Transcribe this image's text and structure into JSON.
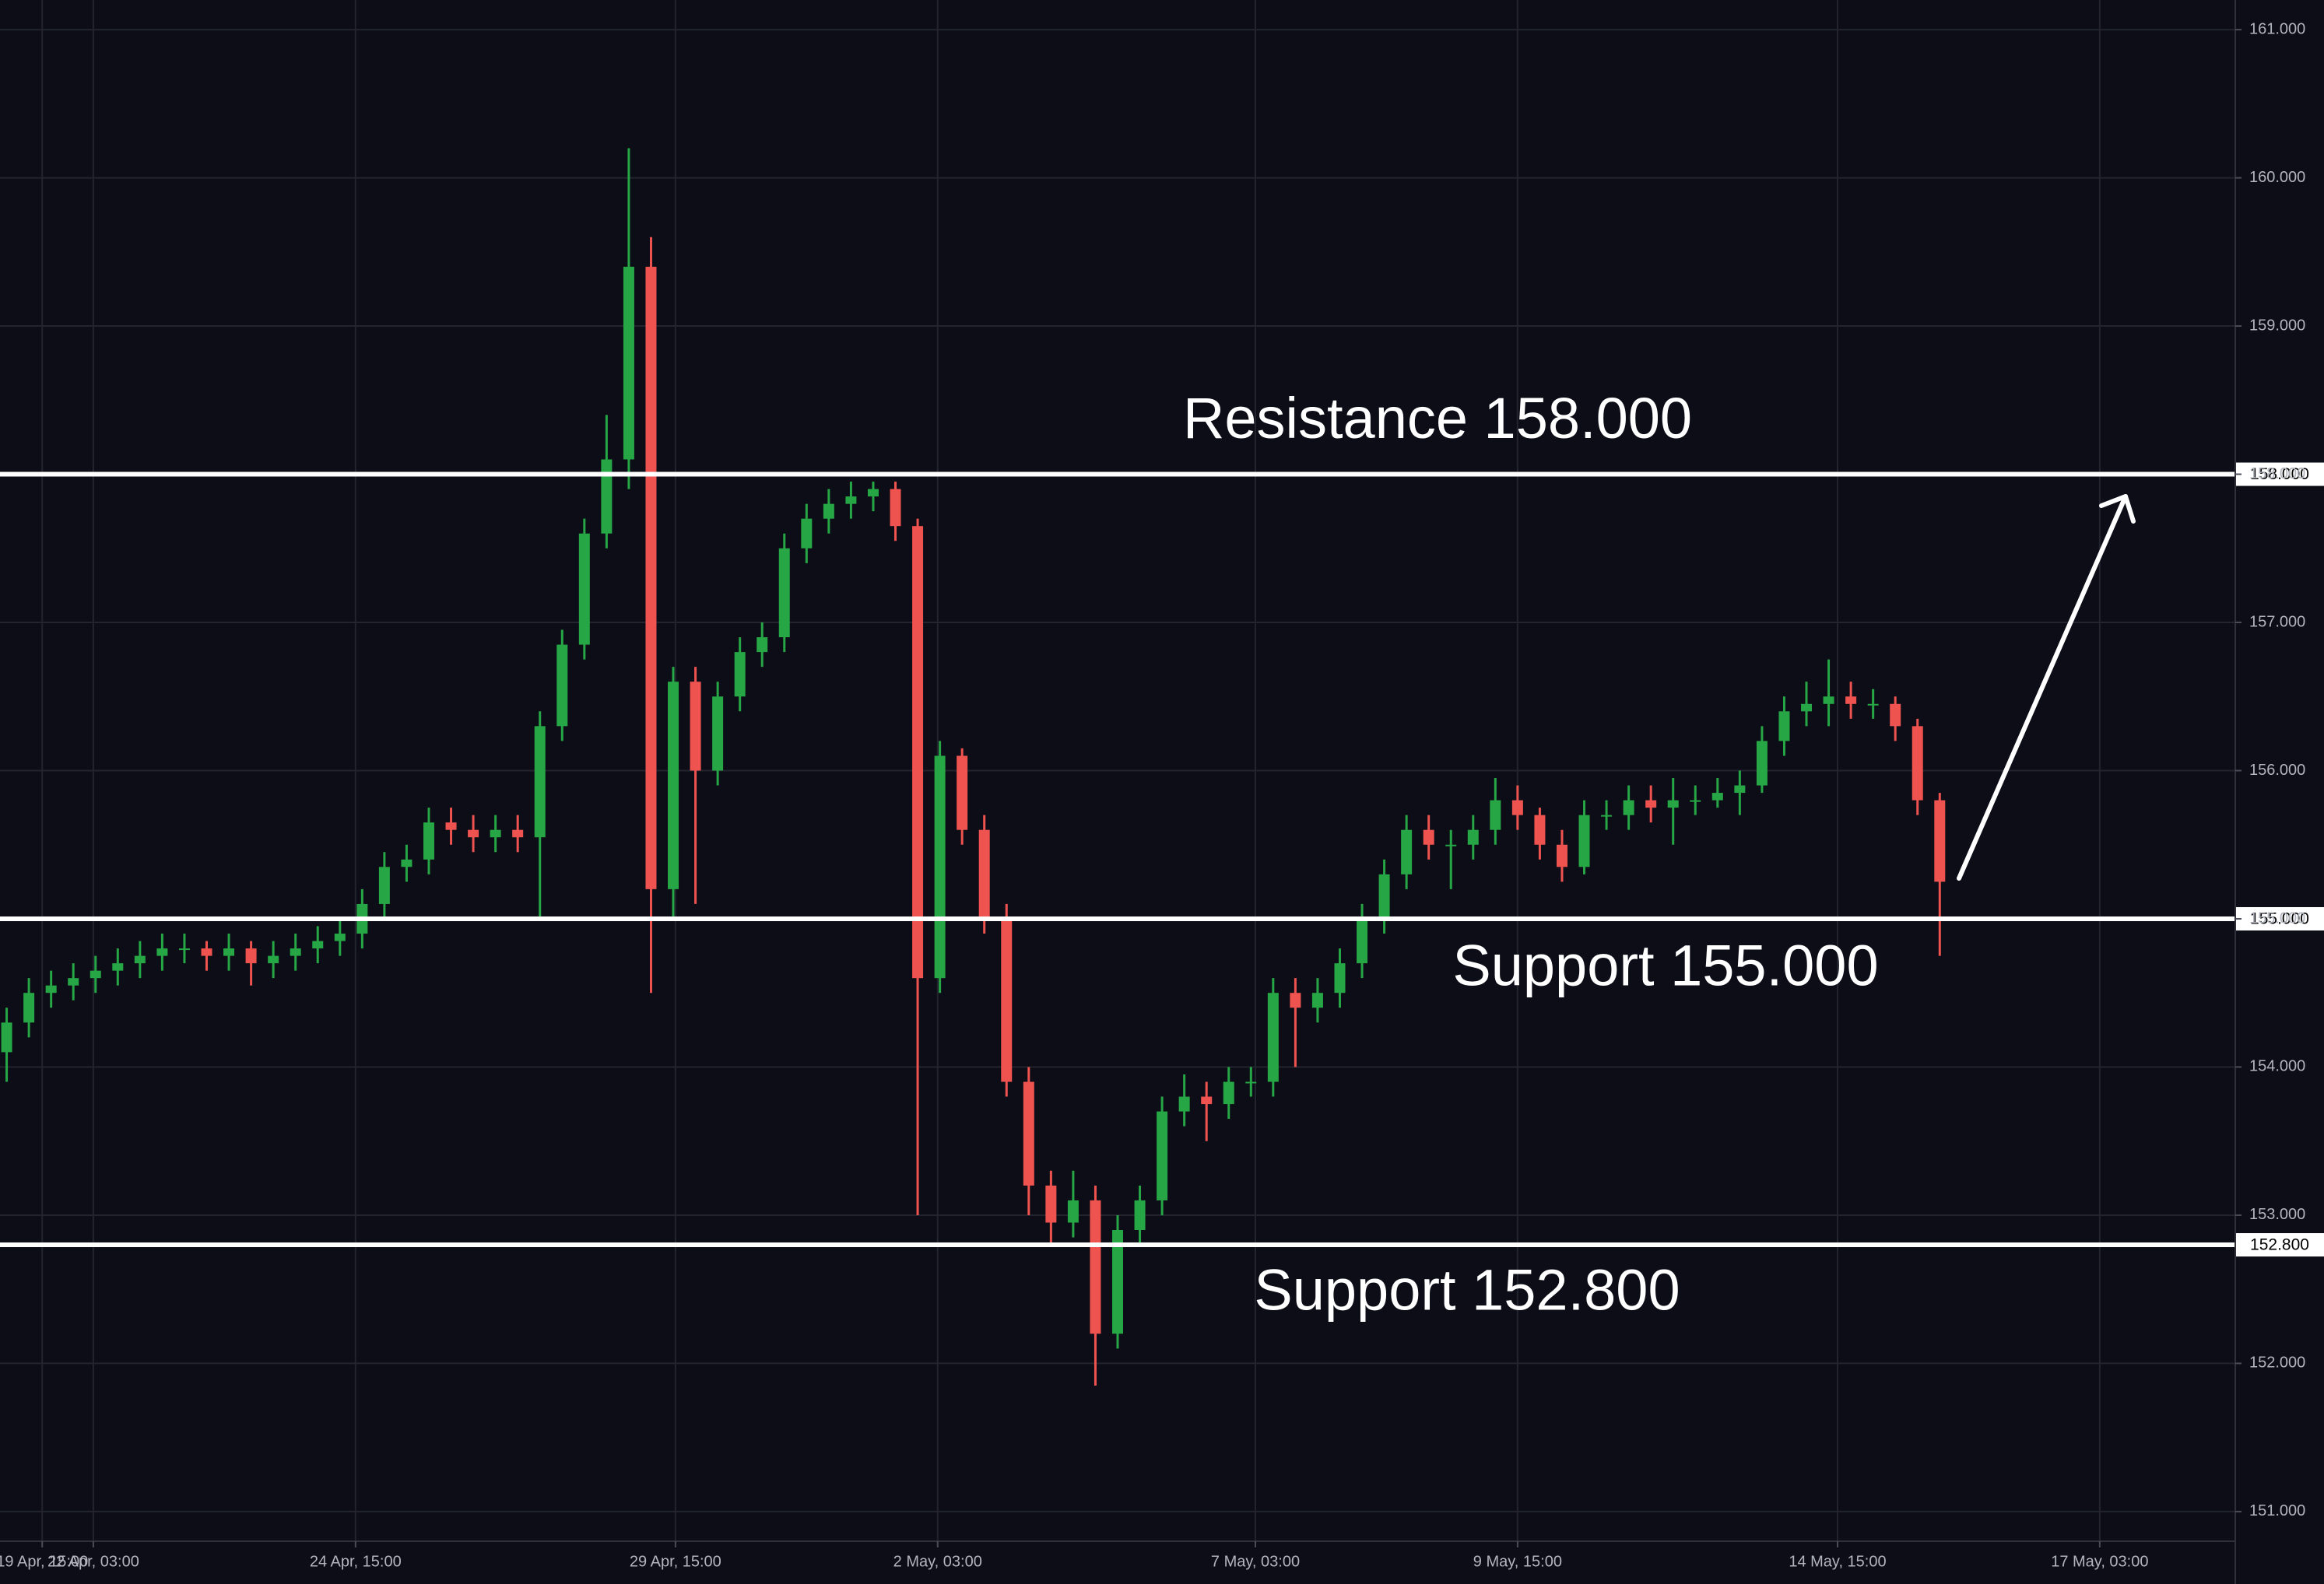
{
  "chart_data": {
    "type": "candlestick",
    "x": [
      0,
      1,
      2,
      3,
      4,
      5,
      6,
      7,
      8,
      9,
      10,
      11,
      12,
      13,
      14,
      15,
      16,
      17,
      18,
      19,
      20,
      21,
      22,
      23,
      24,
      25,
      26,
      27,
      28,
      29,
      30,
      31,
      32,
      33,
      34,
      35,
      36,
      37,
      38,
      39,
      40,
      41,
      42,
      43,
      44,
      45,
      46,
      47,
      48,
      49,
      50,
      51,
      52,
      53,
      54,
      55,
      56,
      57,
      58,
      59,
      60,
      61,
      62,
      63,
      64,
      65,
      66,
      67,
      68,
      69,
      70,
      71,
      72,
      73,
      74,
      75,
      76,
      77,
      78,
      79,
      80,
      81,
      82,
      83,
      84,
      85,
      86,
      87
    ],
    "open": [
      154.1,
      154.3,
      154.5,
      154.55,
      154.6,
      154.65,
      154.7,
      154.75,
      154.8,
      154.8,
      154.75,
      154.8,
      154.7,
      154.75,
      154.8,
      154.85,
      154.9,
      155.1,
      155.35,
      155.4,
      155.65,
      155.6,
      155.55,
      155.6,
      155.55,
      156.3,
      156.85,
      157.6,
      158.1,
      159.4,
      155.2,
      156.6,
      156.0,
      156.5,
      156.8,
      156.9,
      157.5,
      157.7,
      157.8,
      157.85,
      157.9,
      157.65,
      154.6,
      156.1,
      155.6,
      155.0,
      153.9,
      153.2,
      152.95,
      153.1,
      152.2,
      152.9,
      153.1,
      153.7,
      153.8,
      153.75,
      153.9,
      153.9,
      154.5,
      154.4,
      154.5,
      154.7,
      155.0,
      155.3,
      155.6,
      155.5,
      155.5,
      155.6,
      155.8,
      155.7,
      155.5,
      155.35,
      155.7,
      155.7,
      155.8,
      155.75,
      155.8,
      155.8,
      155.85,
      155.9,
      156.2,
      156.4,
      156.45,
      156.5,
      156.45,
      156.45,
      156.3,
      155.8
    ],
    "high": [
      154.4,
      154.6,
      154.65,
      154.7,
      154.75,
      154.8,
      154.85,
      154.9,
      154.9,
      154.85,
      154.9,
      154.85,
      154.85,
      154.9,
      154.95,
      155.0,
      155.2,
      155.45,
      155.5,
      155.75,
      155.75,
      155.7,
      155.7,
      155.7,
      156.4,
      156.95,
      157.7,
      158.4,
      160.2,
      159.6,
      156.7,
      156.7,
      156.6,
      156.9,
      157.0,
      157.6,
      157.8,
      157.9,
      157.95,
      157.95,
      157.95,
      157.7,
      156.2,
      156.15,
      155.7,
      155.1,
      154.0,
      153.3,
      153.3,
      153.2,
      153.0,
      153.2,
      153.8,
      153.95,
      153.9,
      154.0,
      154.0,
      154.6,
      154.6,
      154.6,
      154.8,
      155.1,
      155.4,
      155.7,
      155.7,
      155.6,
      155.7,
      155.95,
      155.9,
      155.75,
      155.6,
      155.8,
      155.8,
      155.9,
      155.9,
      155.95,
      155.9,
      155.95,
      156.0,
      156.3,
      156.5,
      156.6,
      156.75,
      156.6,
      156.55,
      156.5,
      156.35,
      155.85
    ],
    "low": [
      153.9,
      154.2,
      154.4,
      154.45,
      154.5,
      154.55,
      154.6,
      154.65,
      154.7,
      154.65,
      154.65,
      154.55,
      154.6,
      154.65,
      154.7,
      154.75,
      154.8,
      155.0,
      155.25,
      155.3,
      155.5,
      155.45,
      155.45,
      155.45,
      155.0,
      156.2,
      156.75,
      157.5,
      157.9,
      154.5,
      155.0,
      155.1,
      155.9,
      156.4,
      156.7,
      156.8,
      157.4,
      157.6,
      157.7,
      157.75,
      157.55,
      153.0,
      154.5,
      155.5,
      154.9,
      153.8,
      153.0,
      152.8,
      152.85,
      151.85,
      152.1,
      152.8,
      153.0,
      153.6,
      153.5,
      153.65,
      153.8,
      153.8,
      154.0,
      154.3,
      154.4,
      154.6,
      154.9,
      155.2,
      155.4,
      155.2,
      155.4,
      155.5,
      155.6,
      155.4,
      155.25,
      155.3,
      155.6,
      155.6,
      155.65,
      155.5,
      155.7,
      155.75,
      155.7,
      155.85,
      156.1,
      156.3,
      156.3,
      156.35,
      156.35,
      156.2,
      155.7,
      154.75
    ],
    "close": [
      154.3,
      154.5,
      154.55,
      154.6,
      154.65,
      154.7,
      154.75,
      154.8,
      154.8,
      154.75,
      154.8,
      154.7,
      154.75,
      154.8,
      154.85,
      154.9,
      155.1,
      155.35,
      155.4,
      155.65,
      155.6,
      155.55,
      155.6,
      155.55,
      156.3,
      156.85,
      157.6,
      158.1,
      159.4,
      155.2,
      156.6,
      156.0,
      156.5,
      156.8,
      156.9,
      157.5,
      157.7,
      157.8,
      157.85,
      157.9,
      157.65,
      154.6,
      156.1,
      155.6,
      155.0,
      153.9,
      153.2,
      152.95,
      153.1,
      152.2,
      152.9,
      153.1,
      153.7,
      153.8,
      153.75,
      153.9,
      153.9,
      154.5,
      154.4,
      154.5,
      154.7,
      155.0,
      155.3,
      155.6,
      155.5,
      155.5,
      155.6,
      155.8,
      155.7,
      155.5,
      155.35,
      155.7,
      155.7,
      155.8,
      155.75,
      155.8,
      155.8,
      155.85,
      155.9,
      156.2,
      156.4,
      156.45,
      156.5,
      156.45,
      156.45,
      156.3,
      155.8,
      155.25
    ],
    "up_color": "#26a645",
    "down_color": "#ef5350",
    "xlim": [
      -0.3,
      100.3
    ],
    "xticks": [
      {
        "value": 1.6,
        "label": "19 Apr, 15:00"
      },
      {
        "value": 3.9,
        "label": "22 Apr, 03:00"
      },
      {
        "value": 15.7,
        "label": "24 Apr, 15:00"
      },
      {
        "value": 30.1,
        "label": "29 Apr, 15:00"
      },
      {
        "value": 41.9,
        "label": "2 May, 03:00"
      },
      {
        "value": 56.2,
        "label": "7 May, 03:00"
      },
      {
        "value": 68,
        "label": "9 May, 15:00"
      },
      {
        "value": 82.4,
        "label": "14 May, 15:00"
      },
      {
        "value": 94.2,
        "label": "17 May, 03:00"
      }
    ],
    "ylim": [
      150.8,
      161.2
    ],
    "yticks": [
      {
        "value": 151,
        "label": "151.000"
      },
      {
        "value": 152,
        "label": "152.000"
      },
      {
        "value": 153,
        "label": "153.000"
      },
      {
        "value": 154,
        "label": "154.000"
      },
      {
        "value": 155,
        "label": "155.000"
      },
      {
        "value": 156,
        "label": "156.000"
      },
      {
        "value": 157,
        "label": "157.000"
      },
      {
        "value": 158,
        "label": "158.000"
      },
      {
        "value": 159,
        "label": "159.000"
      },
      {
        "value": 160,
        "label": "160.000"
      },
      {
        "value": 161,
        "label": "161.000"
      }
    ],
    "grid": true,
    "levels": [
      {
        "value": 158,
        "label": "158.000",
        "text": "Resistance 158.000"
      },
      {
        "value": 155,
        "label": "155.000",
        "text": "Support 155.000"
      },
      {
        "value": 152.8,
        "label": "152.800",
        "text": "Support 152.800"
      }
    ]
  }
}
